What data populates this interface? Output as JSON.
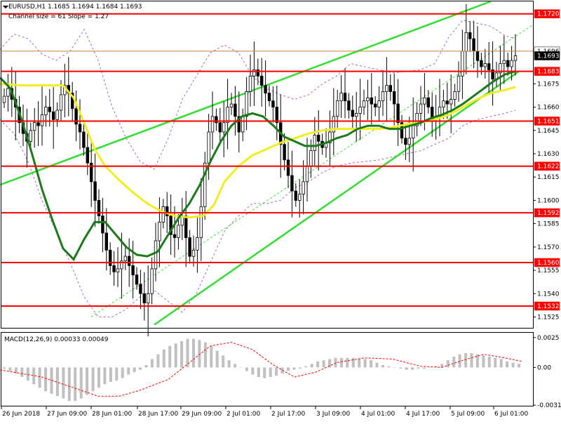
{
  "window": {
    "title": "EURUSD,H1  1.1685 1.1694 1.1684 1.1693",
    "subtitle": "Channel size = 61 Slope = 1.27"
  },
  "macd": {
    "label": "MACD(12,26,9) 0.00033 0.00049"
  },
  "colors": {
    "background": "#ffffff",
    "candle": "#000000",
    "level_line": "#ff0000",
    "level_tag": "#ff0000",
    "price_line": "#c08040",
    "channel": "#33dd33",
    "ma_fast": "#1a7a1a",
    "ma_slow": "#f0ee20",
    "bollinger": "#b060d0",
    "macd_hist": "#c0c0c0",
    "macd_signal": "#ff0000"
  },
  "chart_data": [
    {
      "type": "candlestick",
      "symbol": "EURUSD",
      "timeframe": "H1",
      "ohlc_last": {
        "open": 1.1685,
        "high": 1.1694,
        "low": 1.1684,
        "close": 1.1693
      },
      "ylim": [
        1.1518,
        1.1728
      ],
      "ytick_labels": [
        "1.1720",
        "1.1696",
        "1.1693",
        "1.1683",
        "1.1675",
        "1.1660",
        "1.1651",
        "1.1645",
        "1.1630",
        "1.1622",
        "1.1615",
        "1.1600",
        "1.1592",
        "1.1585",
        "1.1570",
        "1.1560",
        "1.1555",
        "1.1540",
        "1.1532",
        "1.1525"
      ],
      "time_labels": [
        "26 Jun 2018",
        "27 Jun 09:00",
        "28 Jun 01:00",
        "28 Jun 17:00",
        "29 Jun 09:00",
        "2 Jul 01:00",
        "2 Jul 17:00",
        "3 Jul 09:00",
        "4 Jul 01:00",
        "4 Jul 17:00",
        "5 Jul 09:00",
        "6 Jul 01:00"
      ],
      "levels": [
        "1.1720",
        "1.1683",
        "1.1651",
        "1.1622",
        "1.1592",
        "1.1560",
        "1.1532"
      ],
      "current_price": "1.1693",
      "price_line": "1.1696",
      "close_series": [
        1.1667,
        1.1672,
        1.1665,
        1.166,
        1.165,
        1.1643,
        1.1638,
        1.1645,
        1.165,
        1.1648,
        1.1655,
        1.166,
        1.1657,
        1.1652,
        1.1658,
        1.1668,
        1.1674,
        1.1669,
        1.1659,
        1.1649,
        1.1644,
        1.1634,
        1.1624,
        1.1612,
        1.16,
        1.159,
        1.1579,
        1.1568,
        1.1558,
        1.1554,
        1.1556,
        1.1561,
        1.1564,
        1.1558,
        1.1552,
        1.1546,
        1.154,
        1.1534,
        1.154,
        1.1556,
        1.1574,
        1.1586,
        1.1596,
        1.159,
        1.1578,
        1.1576,
        1.1584,
        1.159,
        1.1576,
        1.1564,
        1.1568,
        1.1576,
        1.1596,
        1.1624,
        1.1644,
        1.1654,
        1.165,
        1.1644,
        1.165,
        1.166,
        1.1662,
        1.1654,
        1.1644,
        1.1654,
        1.167,
        1.168,
        1.1684,
        1.168,
        1.1674,
        1.1669,
        1.1664,
        1.166,
        1.165,
        1.1636,
        1.1626,
        1.1616,
        1.1606,
        1.16,
        1.1604,
        1.1612,
        1.1622,
        1.1632,
        1.1642,
        1.1638,
        1.1634,
        1.1637,
        1.1644,
        1.1654,
        1.1664,
        1.1669,
        1.1664,
        1.1658,
        1.1654,
        1.1656,
        1.166,
        1.1664,
        1.1666,
        1.1662,
        1.166,
        1.1664,
        1.167,
        1.1674,
        1.167,
        1.1662,
        1.165,
        1.164,
        1.1636,
        1.164,
        1.1648,
        1.1656,
        1.1662,
        1.1666,
        1.166,
        1.1652,
        1.1654,
        1.166,
        1.1664,
        1.1662,
        1.1665,
        1.167,
        1.168,
        1.1696,
        1.1708,
        1.1704,
        1.1696,
        1.169,
        1.1686,
        1.1688,
        1.1684,
        1.1678,
        1.1682,
        1.1688,
        1.169,
        1.1686,
        1.169,
        1.1693
      ],
      "ma_fast": [
        [
          0,
          1.1679
        ],
        [
          15,
          1.1672
        ],
        [
          30,
          1.1653
        ],
        [
          45,
          1.1631
        ],
        [
          60,
          1.1607
        ],
        [
          75,
          1.1587
        ],
        [
          90,
          1.1569
        ],
        [
          105,
          1.1562
        ],
        [
          120,
          1.1575
        ],
        [
          135,
          1.1586
        ],
        [
          150,
          1.1586
        ],
        [
          165,
          1.1578
        ],
        [
          180,
          1.157
        ],
        [
          195,
          1.1565
        ],
        [
          210,
          1.1564
        ],
        [
          225,
          1.1567
        ],
        [
          240,
          1.1578
        ],
        [
          255,
          1.1589
        ],
        [
          270,
          1.1598
        ],
        [
          285,
          1.161
        ],
        [
          300,
          1.1625
        ],
        [
          315,
          1.1638
        ],
        [
          330,
          1.1648
        ],
        [
          345,
          1.1654
        ],
        [
          360,
          1.1656
        ],
        [
          375,
          1.1654
        ],
        [
          390,
          1.1648
        ],
        [
          405,
          1.1641
        ],
        [
          420,
          1.1638
        ],
        [
          435,
          1.1635
        ],
        [
          450,
          1.1635
        ],
        [
          465,
          1.1637
        ],
        [
          480,
          1.164
        ],
        [
          495,
          1.1642
        ],
        [
          510,
          1.1646
        ],
        [
          525,
          1.1648
        ],
        [
          540,
          1.1648
        ],
        [
          555,
          1.1646
        ],
        [
          570,
          1.1646
        ],
        [
          585,
          1.1648
        ],
        [
          600,
          1.165
        ],
        [
          615,
          1.1653
        ],
        [
          630,
          1.1655
        ],
        [
          645,
          1.1658
        ],
        [
          660,
          1.1662
        ],
        [
          675,
          1.1667
        ],
        [
          690,
          1.1672
        ],
        [
          705,
          1.1677
        ],
        [
          720,
          1.1681
        ],
        [
          735,
          1.1683
        ]
      ],
      "ma_slow": [
        [
          0,
          1.1675
        ],
        [
          30,
          1.1674
        ],
        [
          60,
          1.1674
        ],
        [
          90,
          1.1674
        ],
        [
          105,
          1.1666
        ],
        [
          120,
          1.165
        ],
        [
          135,
          1.1633
        ],
        [
          150,
          1.1622
        ],
        [
          170,
          1.1613
        ],
        [
          190,
          1.1605
        ],
        [
          210,
          1.1598
        ],
        [
          230,
          1.1593
        ],
        [
          250,
          1.159
        ],
        [
          270,
          1.1589
        ],
        [
          290,
          1.159
        ],
        [
          305,
          1.1597
        ],
        [
          320,
          1.1612
        ],
        [
          340,
          1.1622
        ],
        [
          360,
          1.1629
        ],
        [
          380,
          1.1633
        ],
        [
          400,
          1.1637
        ],
        [
          420,
          1.164
        ],
        [
          440,
          1.1643
        ],
        [
          460,
          1.1645
        ],
        [
          480,
          1.1646
        ],
        [
          500,
          1.1646
        ],
        [
          520,
          1.1646
        ],
        [
          540,
          1.1646
        ],
        [
          560,
          1.1647
        ],
        [
          580,
          1.1649
        ],
        [
          600,
          1.165
        ],
        [
          620,
          1.1652
        ],
        [
          640,
          1.1655
        ],
        [
          660,
          1.166
        ],
        [
          680,
          1.1665
        ],
        [
          700,
          1.1669
        ],
        [
          720,
          1.1671
        ],
        [
          735,
          1.1673
        ]
      ],
      "bollinger_upper": [
        [
          0,
          1.1697
        ],
        [
          20,
          1.1707
        ],
        [
          40,
          1.1704
        ],
        [
          60,
          1.1694
        ],
        [
          80,
          1.169
        ],
        [
          100,
          1.1696
        ],
        [
          120,
          1.171
        ],
        [
          140,
          1.169
        ],
        [
          160,
          1.166
        ],
        [
          180,
          1.164
        ],
        [
          200,
          1.1625
        ],
        [
          220,
          1.162
        ],
        [
          240,
          1.164
        ],
        [
          260,
          1.1665
        ],
        [
          280,
          1.168
        ],
        [
          300,
          1.1695
        ],
        [
          320,
          1.17
        ],
        [
          340,
          1.1695
        ],
        [
          360,
          1.168
        ],
        [
          380,
          1.1672
        ],
        [
          400,
          1.1668
        ],
        [
          420,
          1.1665
        ],
        [
          440,
          1.1668
        ],
        [
          460,
          1.1675
        ],
        [
          480,
          1.168
        ],
        [
          500,
          1.1688
        ],
        [
          520,
          1.1686
        ],
        [
          540,
          1.1684
        ],
        [
          560,
          1.1682
        ],
        [
          580,
          1.1683
        ],
        [
          600,
          1.1684
        ],
        [
          620,
          1.1688
        ],
        [
          640,
          1.1705
        ],
        [
          660,
          1.1716
        ],
        [
          680,
          1.1714
        ],
        [
          700,
          1.1712
        ],
        [
          720,
          1.1706
        ],
        [
          735,
          1.1704
        ]
      ],
      "bollinger_lower": [
        [
          0,
          1.1652
        ],
        [
          20,
          1.1643
        ],
        [
          40,
          1.1625
        ],
        [
          60,
          1.16
        ],
        [
          80,
          1.158
        ],
        [
          100,
          1.156
        ],
        [
          120,
          1.1538
        ],
        [
          140,
          1.1525
        ],
        [
          160,
          1.1525
        ],
        [
          180,
          1.153
        ],
        [
          200,
          1.1538
        ],
        [
          220,
          1.1542
        ],
        [
          240,
          1.1535
        ],
        [
          260,
          1.1528
        ],
        [
          280,
          1.154
        ],
        [
          300,
          1.156
        ],
        [
          320,
          1.158
        ],
        [
          340,
          1.159
        ],
        [
          360,
          1.1598
        ],
        [
          380,
          1.1598
        ],
        [
          400,
          1.16
        ],
        [
          420,
          1.1608
        ],
        [
          440,
          1.1612
        ],
        [
          460,
          1.1618
        ],
        [
          480,
          1.1622
        ],
        [
          500,
          1.1624
        ],
        [
          520,
          1.1625
        ],
        [
          540,
          1.1626
        ],
        [
          560,
          1.1628
        ],
        [
          580,
          1.163
        ],
        [
          600,
          1.1632
        ],
        [
          620,
          1.1636
        ],
        [
          640,
          1.164
        ],
        [
          660,
          1.1648
        ],
        [
          680,
          1.1652
        ],
        [
          700,
          1.1654
        ],
        [
          720,
          1.1656
        ],
        [
          735,
          1.1658
        ]
      ],
      "channel_upper": [
        [
          0,
          1.161
        ],
        [
          700,
          1.1728
        ]
      ],
      "channel_lower": [
        [
          220,
          1.152
        ],
        [
          740,
          1.1683
        ]
      ],
      "channel_mid": [
        [
          130,
          1.1525
        ],
        [
          760,
          1.1713
        ]
      ]
    },
    {
      "type": "histogram",
      "name": "MACD(12,26,9)",
      "macd_value": 0.00033,
      "signal_value": 0.00049,
      "ylim": [
        -0.0032,
        0.0029
      ],
      "ytick_labels": [
        "0.0025",
        "0.00",
        "-0.00315"
      ],
      "histogram": [
        -0.0001,
        -0.0003,
        -0.0005,
        -0.0008,
        -0.0011,
        -0.0014,
        -0.0017,
        -0.002,
        -0.0022,
        -0.0024,
        -0.0026,
        -0.0028,
        -0.0028,
        -0.0026,
        -0.0023,
        -0.002,
        -0.0017,
        -0.0014,
        -0.0012,
        -0.0011,
        -0.0009,
        -0.0006,
        -0.0004,
        -0.0002,
        0.0002,
        0.0007,
        0.0011,
        0.0015,
        0.0018,
        0.002,
        0.0022,
        0.0024,
        0.0024,
        0.0023,
        0.0021,
        0.0018,
        0.0014,
        0.001,
        0.0006,
        0.0003,
        0.0,
        -0.0003,
        -0.0006,
        -0.0008,
        -0.0009,
        -0.0008,
        -0.0007,
        -0.0005,
        -0.0003,
        -0.0002,
        -0.0001,
        0.0001,
        0.0003,
        0.0005,
        0.0006,
        0.0007,
        0.0008,
        0.0008,
        0.0008,
        0.0008,
        0.0007,
        0.0007,
        0.0006,
        0.0004,
        0.0002,
        0.0001,
        0.0,
        -0.0001,
        -0.0002,
        -0.0002,
        -0.0001,
        -0.0001,
        0.0,
        0.0001,
        0.0003,
        0.0006,
        0.0009,
        0.0011,
        0.0012,
        0.0012,
        0.0011,
        0.001,
        0.0009,
        0.0008,
        0.0007,
        0.0005,
        0.0004,
        0.0003
      ],
      "signal": [
        [
          0,
          -0.0002
        ],
        [
          60,
          -0.0008
        ],
        [
          110,
          -0.0018
        ],
        [
          140,
          -0.0024
        ],
        [
          170,
          -0.0024
        ],
        [
          200,
          -0.0019
        ],
        [
          240,
          -0.001
        ],
        [
          270,
          0.0004
        ],
        [
          300,
          0.0018
        ],
        [
          330,
          0.0021
        ],
        [
          360,
          0.0015
        ],
        [
          390,
          0.0002
        ],
        [
          420,
          -0.0008
        ],
        [
          450,
          -0.0004
        ],
        [
          480,
          0.0004
        ],
        [
          520,
          0.0008
        ],
        [
          560,
          0.0007
        ],
        [
          600,
          0.0001
        ],
        [
          630,
          0.0
        ],
        [
          660,
          0.0006
        ],
        [
          690,
          0.0011
        ],
        [
          720,
          0.0008
        ],
        [
          745,
          0.0005
        ]
      ]
    }
  ]
}
